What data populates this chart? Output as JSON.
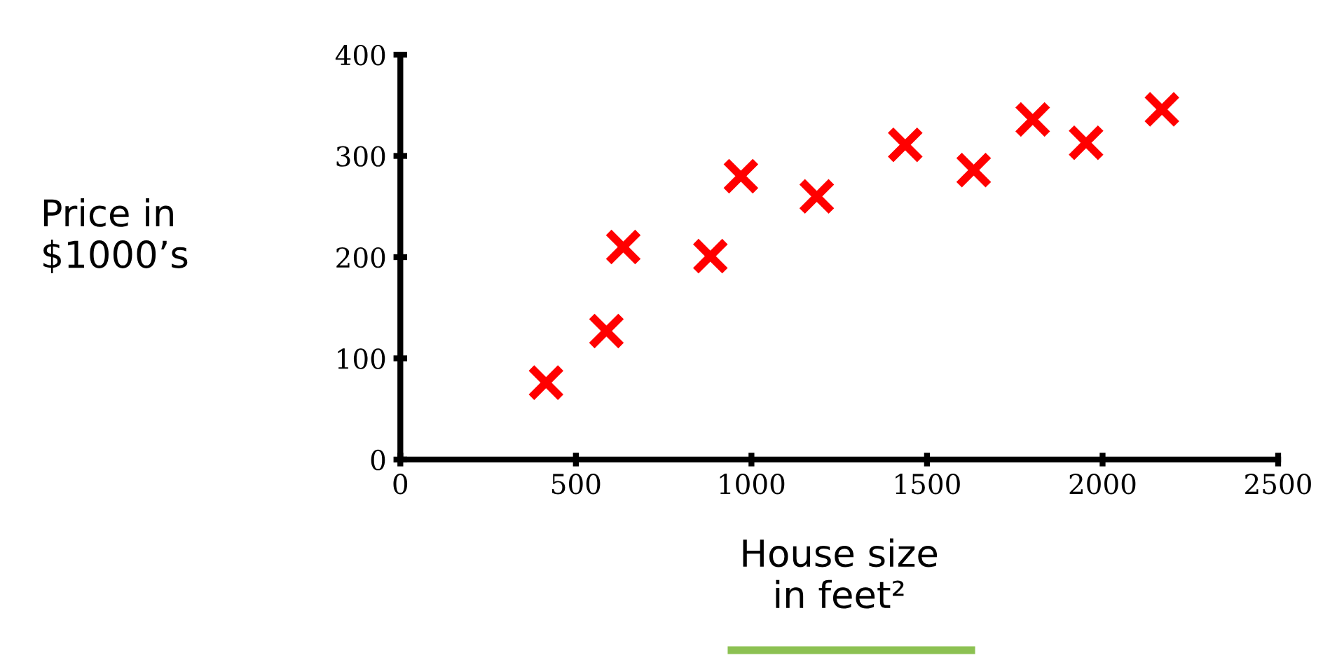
{
  "chart_data": {
    "type": "scatter",
    "xlabel": "House size\nin feet²",
    "ylabel": "Price in\n$1000’s",
    "x": [
      415,
      587,
      635,
      883,
      970,
      1186,
      1438,
      1633,
      1801,
      1953,
      2169
    ],
    "series": [
      {
        "color": "#ff0000",
        "values": [
          76,
          127,
          210,
          201,
          280,
          260,
          311,
          286,
          336,
          313,
          346
        ]
      }
    ],
    "marker": "cross",
    "xlim": [
      0,
      2500
    ],
    "ylim": [
      0,
      400
    ],
    "xticks": [
      0,
      500,
      1000,
      1500,
      2000,
      2500
    ],
    "yticks": [
      0,
      100,
      200,
      300,
      400
    ],
    "grid": false,
    "legend": false
  }
}
